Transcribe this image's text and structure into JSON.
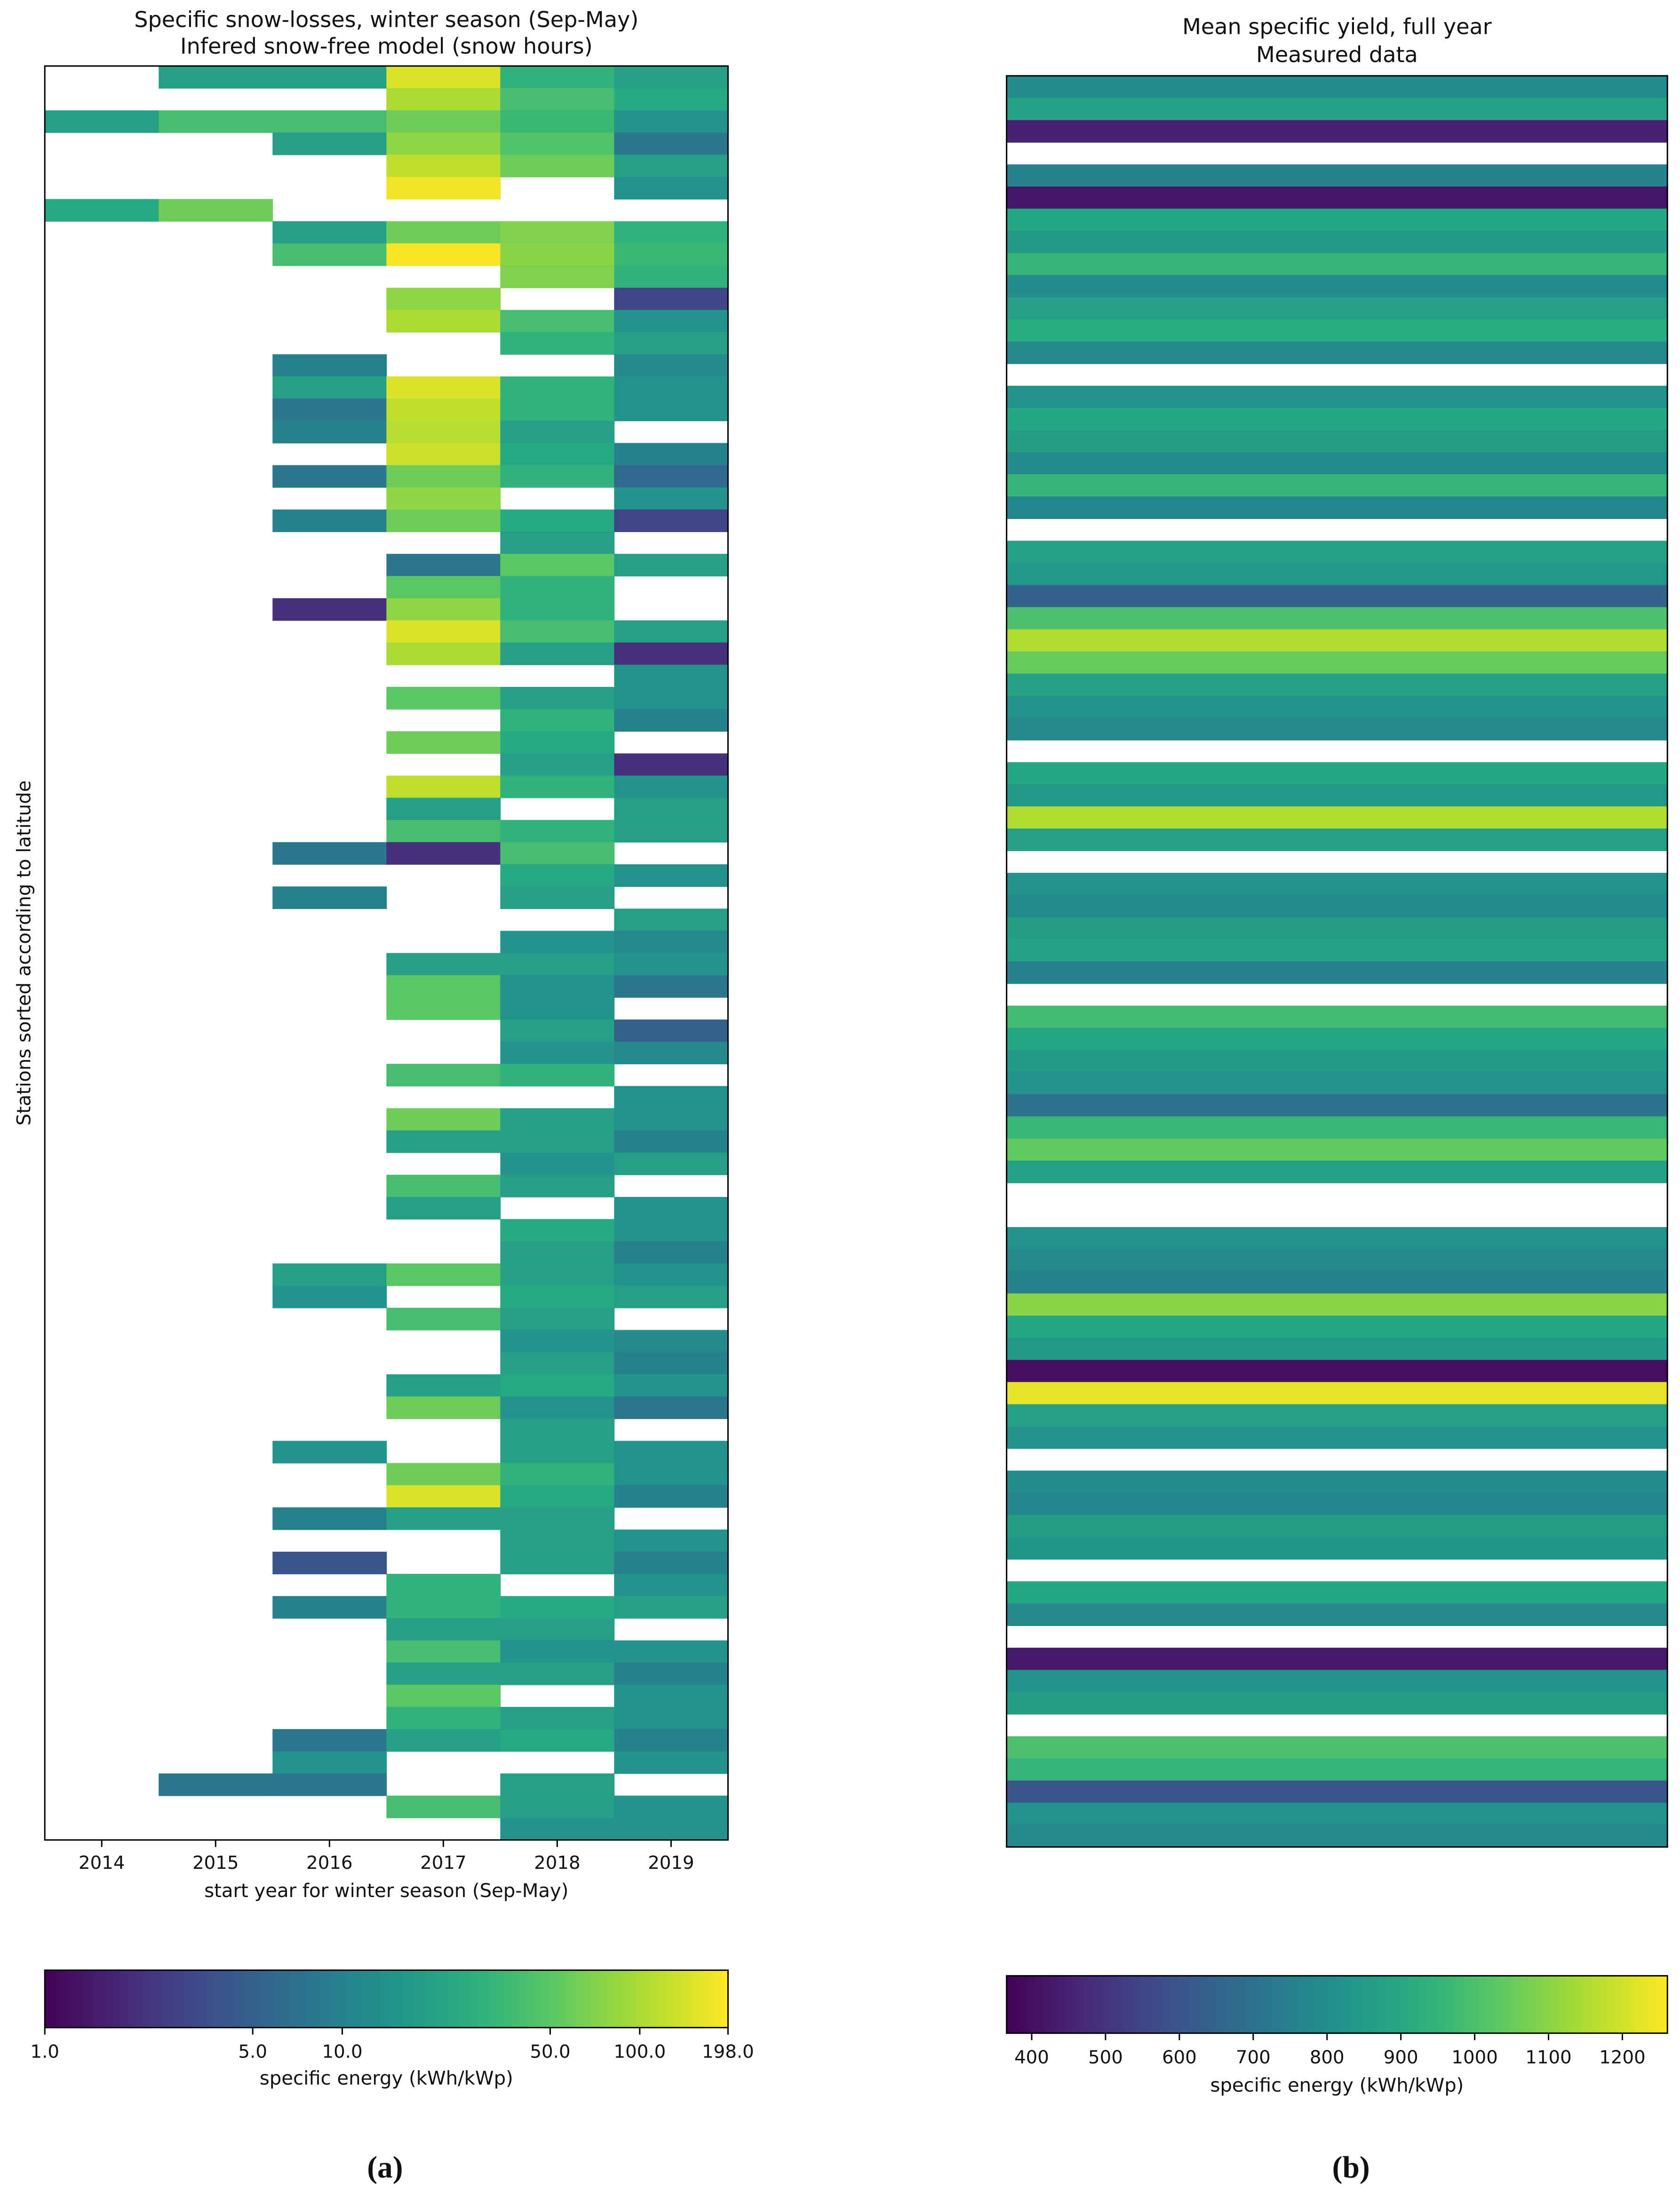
{
  "chart_data": [
    {
      "type": "heatmap",
      "title": "Specific snow-losses, winter season (Sep-May)",
      "subtitle": "Infered snow-free model (snow hours)",
      "xlabel": "start year for winter season (Sep-May)",
      "ylabel": "Stations sorted according to latitude",
      "categories": [
        "2014",
        "2015",
        "2016",
        "2017",
        "2018",
        "2019"
      ],
      "colormap": "viridis",
      "log_scale": true,
      "clim": [
        1,
        198
      ],
      "cticks": [
        {
          "value": 1,
          "label": "1.0"
        },
        {
          "value": 5,
          "label": "5.0"
        },
        {
          "value": 10,
          "label": "10.0"
        },
        {
          "value": 50,
          "label": "50.0"
        },
        {
          "value": 100,
          "label": "100.0"
        },
        {
          "value": 198,
          "label": "198.0"
        }
      ],
      "clabel": "specific energy (kWh/kWp)",
      "panel_label": "(a)",
      "values": [
        [
          null,
          20,
          20,
          150,
          30,
          20
        ],
        [
          null,
          null,
          null,
          100,
          40,
          25
        ],
        [
          20,
          40,
          40,
          60,
          35,
          15
        ],
        [
          null,
          null,
          20,
          80,
          45,
          8
        ],
        [
          null,
          null,
          null,
          120,
          60,
          20
        ],
        [
          null,
          null,
          null,
          180,
          null,
          15
        ],
        [
          25,
          60,
          null,
          null,
          null,
          null
        ],
        [
          null,
          null,
          20,
          60,
          70,
          30
        ],
        [
          null,
          null,
          40,
          190,
          75,
          35
        ],
        [
          null,
          null,
          null,
          null,
          70,
          30
        ],
        [
          null,
          null,
          null,
          80,
          null,
          3
        ],
        [
          null,
          null,
          null,
          100,
          40,
          15
        ],
        [
          null,
          null,
          null,
          null,
          30,
          20
        ],
        [
          null,
          null,
          10,
          null,
          null,
          12
        ],
        [
          null,
          null,
          20,
          150,
          30,
          15
        ],
        [
          null,
          null,
          8,
          120,
          30,
          15
        ],
        [
          null,
          null,
          10,
          110,
          20,
          null
        ],
        [
          null,
          null,
          null,
          130,
          25,
          10
        ],
        [
          null,
          null,
          8,
          60,
          30,
          6
        ],
        [
          null,
          null,
          null,
          80,
          null,
          15
        ],
        [
          null,
          null,
          10,
          60,
          25,
          3
        ],
        [
          null,
          null,
          null,
          null,
          20,
          null
        ],
        [
          null,
          null,
          null,
          8,
          50,
          20
        ],
        [
          null,
          null,
          null,
          50,
          30,
          null
        ],
        [
          null,
          null,
          2,
          80,
          30,
          null
        ],
        [
          null,
          null,
          null,
          150,
          40,
          20
        ],
        [
          null,
          null,
          null,
          100,
          20,
          2
        ],
        [
          null,
          null,
          null,
          null,
          null,
          15
        ],
        [
          null,
          null,
          null,
          50,
          20,
          15
        ],
        [
          null,
          null,
          null,
          null,
          30,
          10
        ],
        [
          null,
          null,
          null,
          60,
          25,
          null
        ],
        [
          null,
          null,
          null,
          null,
          20,
          2
        ],
        [
          null,
          null,
          null,
          120,
          30,
          15
        ],
        [
          null,
          null,
          null,
          20,
          null,
          20
        ],
        [
          null,
          null,
          null,
          40,
          30,
          20
        ],
        [
          null,
          null,
          8,
          2,
          40,
          null
        ],
        [
          null,
          null,
          null,
          null,
          25,
          15
        ],
        [
          null,
          null,
          10,
          null,
          20,
          null
        ],
        [
          null,
          null,
          null,
          null,
          null,
          20
        ],
        [
          null,
          null,
          null,
          null,
          15,
          12
        ],
        [
          null,
          null,
          null,
          20,
          20,
          15
        ],
        [
          null,
          null,
          null,
          50,
          15,
          8
        ],
        [
          null,
          null,
          null,
          50,
          15,
          null
        ],
        [
          null,
          null,
          null,
          null,
          20,
          5
        ],
        [
          null,
          null,
          null,
          null,
          15,
          12
        ],
        [
          null,
          null,
          null,
          40,
          30,
          null
        ],
        [
          null,
          null,
          null,
          null,
          null,
          15
        ],
        [
          null,
          null,
          null,
          60,
          20,
          15
        ],
        [
          null,
          null,
          null,
          20,
          20,
          10
        ],
        [
          null,
          null,
          null,
          null,
          15,
          20
        ],
        [
          null,
          null,
          null,
          40,
          20,
          null
        ],
        [
          null,
          null,
          null,
          20,
          null,
          15
        ],
        [
          null,
          null,
          null,
          null,
          25,
          15
        ],
        [
          null,
          null,
          null,
          null,
          20,
          10
        ],
        [
          null,
          null,
          20,
          50,
          20,
          15
        ],
        [
          null,
          null,
          15,
          null,
          25,
          20
        ],
        [
          null,
          null,
          null,
          40,
          20,
          null
        ],
        [
          null,
          null,
          null,
          null,
          15,
          12
        ],
        [
          null,
          null,
          null,
          null,
          20,
          10
        ],
        [
          null,
          null,
          null,
          20,
          25,
          15
        ],
        [
          null,
          null,
          null,
          60,
          15,
          8
        ],
        [
          null,
          null,
          null,
          null,
          20,
          null
        ],
        [
          null,
          null,
          15,
          null,
          20,
          15
        ],
        [
          null,
          null,
          null,
          60,
          30,
          15
        ],
        [
          null,
          null,
          null,
          150,
          25,
          10
        ],
        [
          null,
          null,
          10,
          20,
          20,
          null
        ],
        [
          null,
          null,
          null,
          null,
          20,
          15
        ],
        [
          null,
          null,
          4,
          null,
          20,
          10
        ],
        [
          null,
          null,
          null,
          30,
          null,
          15
        ],
        [
          null,
          null,
          10,
          30,
          25,
          20
        ],
        [
          null,
          null,
          null,
          20,
          20,
          null
        ],
        [
          null,
          null,
          null,
          40,
          15,
          15
        ],
        [
          null,
          null,
          null,
          20,
          20,
          10
        ],
        [
          null,
          null,
          null,
          50,
          null,
          15
        ],
        [
          null,
          null,
          null,
          30,
          20,
          15
        ],
        [
          null,
          null,
          8,
          20,
          25,
          10
        ],
        [
          null,
          null,
          15,
          null,
          null,
          15
        ],
        [
          null,
          8,
          8,
          null,
          20,
          null
        ],
        [
          null,
          null,
          null,
          40,
          20,
          15
        ],
        [
          null,
          null,
          null,
          null,
          15,
          15
        ]
      ]
    },
    {
      "type": "heatmap",
      "title": "Mean specific yield, full year",
      "subtitle": "Measured data",
      "colormap": "viridis",
      "log_scale": false,
      "clim": [
        366,
        1261
      ],
      "cticks": [
        400,
        500,
        600,
        700,
        800,
        900,
        1000,
        1100,
        1200
      ],
      "clabel": "specific energy (kWh/kWp)",
      "panel_label": "(b)",
      "values": [
        800,
        880,
        450,
        null,
        760,
        420,
        900,
        850,
        950,
        800,
        870,
        920,
        780,
        null,
        820,
        900,
        860,
        800,
        950,
        770,
        null,
        880,
        840,
        650,
        1000,
        1150,
        1050,
        880,
        820,
        780,
        null,
        900,
        840,
        1150,
        870,
        null,
        820,
        790,
        860,
        880,
        760,
        null,
        980,
        900,
        850,
        820,
        700,
        960,
        1040,
        880,
        null,
        null,
        820,
        780,
        760,
        1100,
        900,
        850,
        400,
        1230,
        880,
        820,
        null,
        800,
        770,
        860,
        830,
        null,
        900,
        780,
        null,
        430,
        820,
        860,
        null,
        1000,
        950,
        600,
        820,
        780
      ]
    }
  ]
}
